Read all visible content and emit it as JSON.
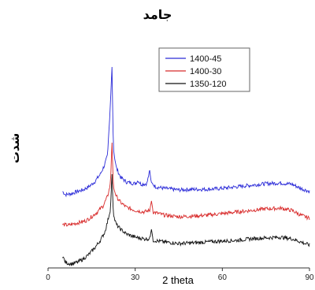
{
  "chart_data": {
    "type": "line",
    "title": "جامد",
    "xlabel": "2 theta",
    "ylabel": "شدت",
    "xlim": [
      0,
      90
    ],
    "xticks": [
      0,
      30,
      60,
      90
    ],
    "grid": false,
    "legend_position": "top-right",
    "series": [
      {
        "name": "1400-45",
        "color": "#2a2ad8",
        "baseline": 2.0,
        "points": [
          [
            5,
            2.05
          ],
          [
            6,
            1.95
          ],
          [
            8,
            1.98
          ],
          [
            10,
            2.05
          ],
          [
            12,
            2.1
          ],
          [
            14,
            2.2
          ],
          [
            16,
            2.35
          ],
          [
            18,
            2.6
          ],
          [
            19.5,
            2.9
          ],
          [
            20.5,
            3.2
          ],
          [
            21.5,
            4.9
          ],
          [
            22,
            6.0
          ],
          [
            22.5,
            3.4
          ],
          [
            23.5,
            2.8
          ],
          [
            25,
            2.5
          ],
          [
            27,
            2.35
          ],
          [
            30,
            2.3
          ],
          [
            31,
            2.4
          ],
          [
            32,
            2.28
          ],
          [
            34,
            2.3
          ],
          [
            35,
            2.7
          ],
          [
            35.5,
            2.35
          ],
          [
            37,
            2.2
          ],
          [
            40,
            2.15
          ],
          [
            45,
            2.1
          ],
          [
            50,
            2.12
          ],
          [
            55,
            2.12
          ],
          [
            60,
            2.15
          ],
          [
            65,
            2.2
          ],
          [
            70,
            2.25
          ],
          [
            75,
            2.3
          ],
          [
            80,
            2.32
          ],
          [
            84,
            2.28
          ],
          [
            87,
            2.15
          ],
          [
            90,
            2.05
          ]
        ]
      },
      {
        "name": "1400-30",
        "color": "#d82a2a",
        "baseline": 1.0,
        "points": [
          [
            5,
            1.0
          ],
          [
            7,
            0.98
          ],
          [
            10,
            1.05
          ],
          [
            13,
            1.12
          ],
          [
            15,
            1.25
          ],
          [
            17,
            1.4
          ],
          [
            19,
            1.6
          ],
          [
            20.5,
            1.9
          ],
          [
            21.5,
            2.3
          ],
          [
            22,
            3.6
          ],
          [
            22.5,
            2.2
          ],
          [
            23.5,
            1.9
          ],
          [
            25,
            1.7
          ],
          [
            27,
            1.55
          ],
          [
            30,
            1.45
          ],
          [
            33,
            1.4
          ],
          [
            35,
            1.45
          ],
          [
            35.6,
            1.75
          ],
          [
            36.2,
            1.4
          ],
          [
            40,
            1.3
          ],
          [
            45,
            1.25
          ],
          [
            50,
            1.27
          ],
          [
            55,
            1.3
          ],
          [
            60,
            1.35
          ],
          [
            65,
            1.4
          ],
          [
            70,
            1.45
          ],
          [
            75,
            1.5
          ],
          [
            80,
            1.52
          ],
          [
            84,
            1.45
          ],
          [
            87,
            1.3
          ],
          [
            90,
            1.2
          ]
        ]
      },
      {
        "name": "1350-120",
        "color": "#111111",
        "baseline": 0.0,
        "points": [
          [
            5,
            0.0
          ],
          [
            6,
            -0.2
          ],
          [
            8,
            -0.25
          ],
          [
            10,
            -0.2
          ],
          [
            12,
            -0.1
          ],
          [
            14,
            0.05
          ],
          [
            16,
            0.25
          ],
          [
            18,
            0.5
          ],
          [
            19.5,
            0.75
          ],
          [
            20.5,
            1.1
          ],
          [
            21.5,
            1.5
          ],
          [
            22,
            2.6
          ],
          [
            22.5,
            1.3
          ],
          [
            23.5,
            1.0
          ],
          [
            25,
            0.85
          ],
          [
            27,
            0.7
          ],
          [
            30,
            0.6
          ],
          [
            33,
            0.55
          ],
          [
            35,
            0.55
          ],
          [
            35.6,
            0.85
          ],
          [
            36.2,
            0.5
          ],
          [
            40,
            0.45
          ],
          [
            45,
            0.4
          ],
          [
            50,
            0.42
          ],
          [
            55,
            0.45
          ],
          [
            60,
            0.48
          ],
          [
            65,
            0.5
          ],
          [
            70,
            0.55
          ],
          [
            75,
            0.58
          ],
          [
            80,
            0.6
          ],
          [
            84,
            0.55
          ],
          [
            87,
            0.45
          ],
          [
            90,
            0.35
          ]
        ]
      }
    ]
  }
}
